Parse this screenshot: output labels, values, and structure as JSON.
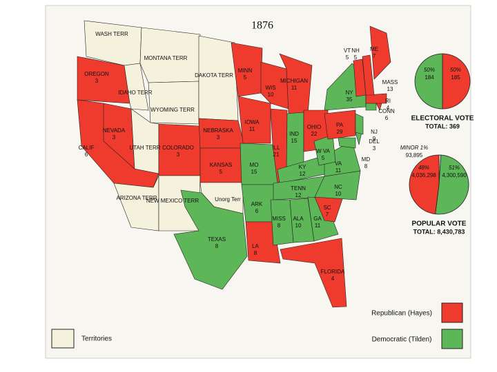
{
  "title": "1876",
  "states": [
    {
      "name": "OREGON",
      "votes": "3"
    },
    {
      "name": "CALIF",
      "votes": "6"
    },
    {
      "name": "NEVADA",
      "votes": "3"
    },
    {
      "name": "COLORADO",
      "votes": "3"
    },
    {
      "name": "NEBRASKA",
      "votes": "3"
    },
    {
      "name": "KANSAS",
      "votes": "5"
    },
    {
      "name": "MINN",
      "votes": "5"
    },
    {
      "name": "IOWA",
      "votes": "11"
    },
    {
      "name": "WIS",
      "votes": "10"
    },
    {
      "name": "MICHIGAN",
      "votes": "11"
    },
    {
      "name": "ILL",
      "votes": "21"
    },
    {
      "name": "IND",
      "votes": "15"
    },
    {
      "name": "OHIO",
      "votes": "22"
    },
    {
      "name": "PA",
      "votes": "29"
    },
    {
      "name": "NY",
      "votes": "35"
    },
    {
      "name": "MO",
      "votes": "15"
    },
    {
      "name": "KY",
      "votes": "12"
    },
    {
      "name": "TENN",
      "votes": "12"
    },
    {
      "name": "ARK",
      "votes": "6"
    },
    {
      "name": "MISS",
      "votes": "8"
    },
    {
      "name": "ALA",
      "votes": "10"
    },
    {
      "name": "GA",
      "votes": "11"
    },
    {
      "name": "SC",
      "votes": "7"
    },
    {
      "name": "NC",
      "votes": "10"
    },
    {
      "name": "VA",
      "votes": "11"
    },
    {
      "name": "W VA",
      "votes": "5"
    },
    {
      "name": "LA",
      "votes": "8"
    },
    {
      "name": "TEXAS",
      "votes": "8"
    },
    {
      "name": "FLORIDA",
      "votes": "4"
    },
    {
      "name": "MD",
      "votes": "8"
    },
    {
      "name": "DEL",
      "votes": "3"
    },
    {
      "name": "NJ",
      "votes": "9"
    },
    {
      "name": "CONN",
      "votes": "6"
    },
    {
      "name": "RI",
      "votes": "4"
    },
    {
      "name": "MASS",
      "votes": "13"
    },
    {
      "name": "VT",
      "votes": "5"
    },
    {
      "name": "NH",
      "votes": "5"
    },
    {
      "name": "ME",
      "votes": "7"
    }
  ],
  "territories": [
    "WASH TERR",
    "MONTANA TERR",
    "IDAHO TERR",
    "WYOMING TERR",
    "DAKOTA TERR",
    "UTAH TERR",
    "ARIZONA TERR",
    "NEW MEXICO TERR",
    "Unorg Terr"
  ],
  "electoral_vote": {
    "title": "ELECTORAL VOTE",
    "total": "TOTAL: 369",
    "slices": [
      {
        "value": 50,
        "label": "50%",
        "votes": "185",
        "color": "#ee3b2e"
      },
      {
        "value": 50,
        "label": "50%",
        "votes": "184",
        "color": "#5db657"
      }
    ]
  },
  "popular_vote": {
    "title": "POPULAR VOTE",
    "total": "TOTAL: 8,430,783",
    "slices": [
      {
        "value": 1,
        "label": "MINOR 1%",
        "votes": "93,895",
        "color": "#f4f1dc"
      },
      {
        "value": 51,
        "label": "51%",
        "votes": "4,300,590",
        "color": "#5db657"
      },
      {
        "value": 48,
        "label": "48%",
        "votes": "4,036,298",
        "color": "#ee3b2e"
      }
    ]
  },
  "legend": {
    "republican": "Republican (Hayes)",
    "democratic": "Democratic (Tilden)",
    "territories": "Territories"
  }
}
